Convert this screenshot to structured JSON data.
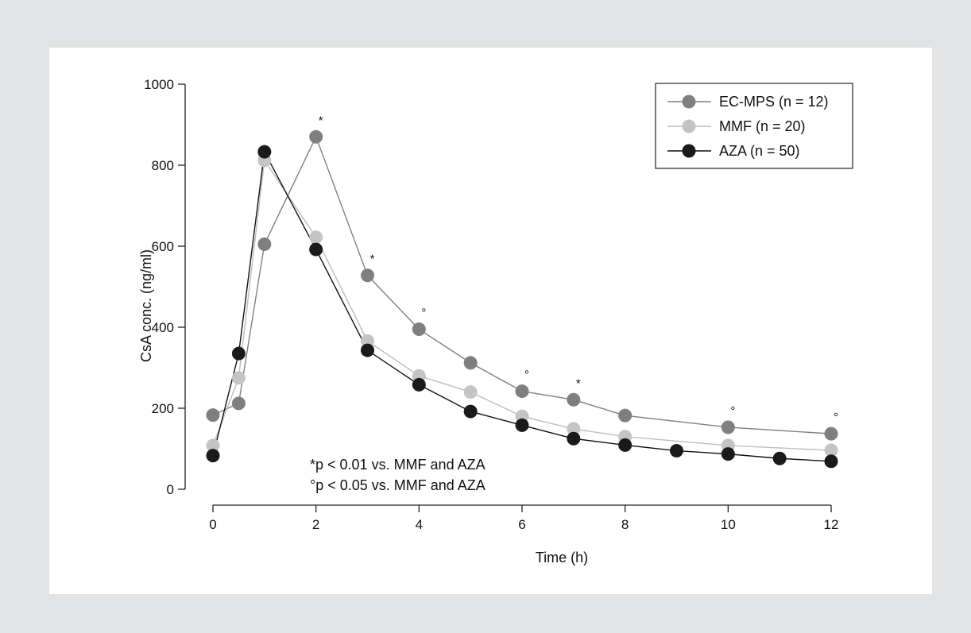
{
  "chart_data": {
    "type": "line",
    "xlabel": "Time (h)",
    "ylabel": "CsA conc. (ng/ml)",
    "xlim": [
      0,
      12
    ],
    "ylim": [
      0,
      1000
    ],
    "x_ticks": [
      0,
      2,
      4,
      6,
      8,
      10,
      12
    ],
    "y_ticks": [
      0,
      200,
      400,
      600,
      800,
      1000
    ],
    "grid": false,
    "legend_position": "top-right",
    "series": [
      {
        "name": "EC-MPS (n = 12)",
        "color": "#7f7f7f",
        "marker_color": "#7f7f7f",
        "x": [
          0,
          0.5,
          1,
          2,
          3,
          4,
          5,
          6,
          7,
          8,
          10,
          12
        ],
        "values": [
          183,
          212,
          605,
          870,
          528,
          395,
          312,
          242,
          221,
          182,
          153,
          137
        ]
      },
      {
        "name": "MMF (n = 20)",
        "color": "#bdbdbd",
        "marker_color": "#c4c4c4",
        "x": [
          0,
          0.5,
          1,
          2,
          3,
          4,
          5,
          6,
          7,
          8,
          10,
          12
        ],
        "values": [
          108,
          275,
          812,
          622,
          366,
          280,
          240,
          180,
          149,
          130,
          108,
          96
        ]
      },
      {
        "name": "AZA (n = 50)",
        "color": "#111111",
        "marker_color": "#1a1a1a",
        "x": [
          0,
          0.5,
          1,
          2,
          3,
          4,
          5,
          6,
          7,
          8,
          9,
          10,
          11,
          12
        ],
        "values": [
          83,
          335,
          833,
          592,
          343,
          258,
          192,
          158,
          125,
          109,
          95,
          87,
          76,
          69
        ]
      }
    ],
    "annotations": [
      {
        "text": "*",
        "x": 2,
        "y": 870
      },
      {
        "text": "*",
        "x": 3,
        "y": 528
      },
      {
        "text": "°",
        "x": 4,
        "y": 395
      },
      {
        "text": "°",
        "x": 6,
        "y": 242
      },
      {
        "text": "*",
        "x": 7,
        "y": 221
      },
      {
        "text": "°",
        "x": 10,
        "y": 153
      },
      {
        "text": "°",
        "x": 12,
        "y": 137
      }
    ],
    "notes": [
      "*p < 0.01 vs. MMF and AZA",
      "°p < 0.05 vs. MMF and AZA"
    ]
  }
}
